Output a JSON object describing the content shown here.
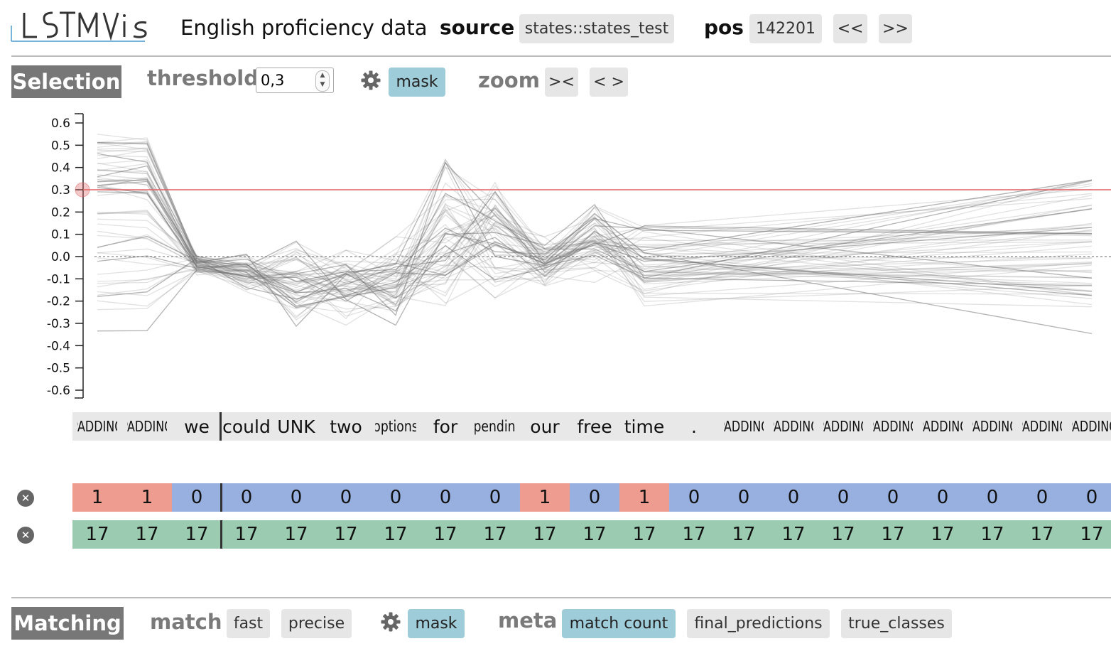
{
  "header": {
    "logo_text": "LSTMVis",
    "title": "English proficiency data",
    "source_label": "source",
    "source_value": "states::states_test",
    "pos_label": "pos",
    "pos_value": "142201",
    "prev_label": "<<",
    "next_label": ">>"
  },
  "selection": {
    "title": "Selection",
    "threshold_label": "threshold",
    "threshold_value": "0,3",
    "mask_label": "mask",
    "zoom_label": "zoom",
    "zoom_in_label": "><",
    "zoom_out_label": "< >"
  },
  "chart_data": {
    "type": "line",
    "y_ticks": [
      "0.6",
      "0.5",
      "0.4",
      "0.3",
      "0.2",
      "0.1",
      "0.0",
      "-0.1",
      "-0.2",
      "-0.3",
      "-0.4",
      "-0.5",
      "-0.6"
    ],
    "ylim": [
      -0.6,
      0.6
    ],
    "threshold": 0.3,
    "threshold_color": "#e06060",
    "zero_line": "dashed",
    "line_color": "#777777",
    "series_count": 60
  },
  "words": [
    "PADDING",
    "PADDING",
    "we",
    "could",
    "UNK",
    "two",
    "options",
    "for",
    "spending",
    "our",
    "free",
    "time",
    ".",
    "PADDING",
    "PADDING",
    "PADDING",
    "PADDING",
    "PADDING",
    "PADDING",
    "PADDING",
    "PADDING"
  ],
  "meta_rows": [
    {
      "values": [
        "1",
        "1",
        "0",
        "0",
        "0",
        "0",
        "0",
        "0",
        "0",
        "1",
        "0",
        "1",
        "0",
        "0",
        "0",
        "0",
        "0",
        "0",
        "0",
        "0",
        "0"
      ]
    },
    {
      "values": [
        "17",
        "17",
        "17",
        "17",
        "17",
        "17",
        "17",
        "17",
        "17",
        "17",
        "17",
        "17",
        "17",
        "17",
        "17",
        "17",
        "17",
        "17",
        "17",
        "17",
        "17"
      ]
    }
  ],
  "colors": {
    "pos": "#ee9c8f",
    "neg": "#98b0e0",
    "class": "#9bcbb0"
  },
  "matching": {
    "title": "Matching",
    "match_label": "match",
    "fast_label": "fast",
    "precise_label": "precise",
    "mask_label": "mask",
    "meta_label": "meta",
    "match_count_label": "match count",
    "final_predictions_label": "final_predictions",
    "true_classes_label": "true_classes"
  }
}
